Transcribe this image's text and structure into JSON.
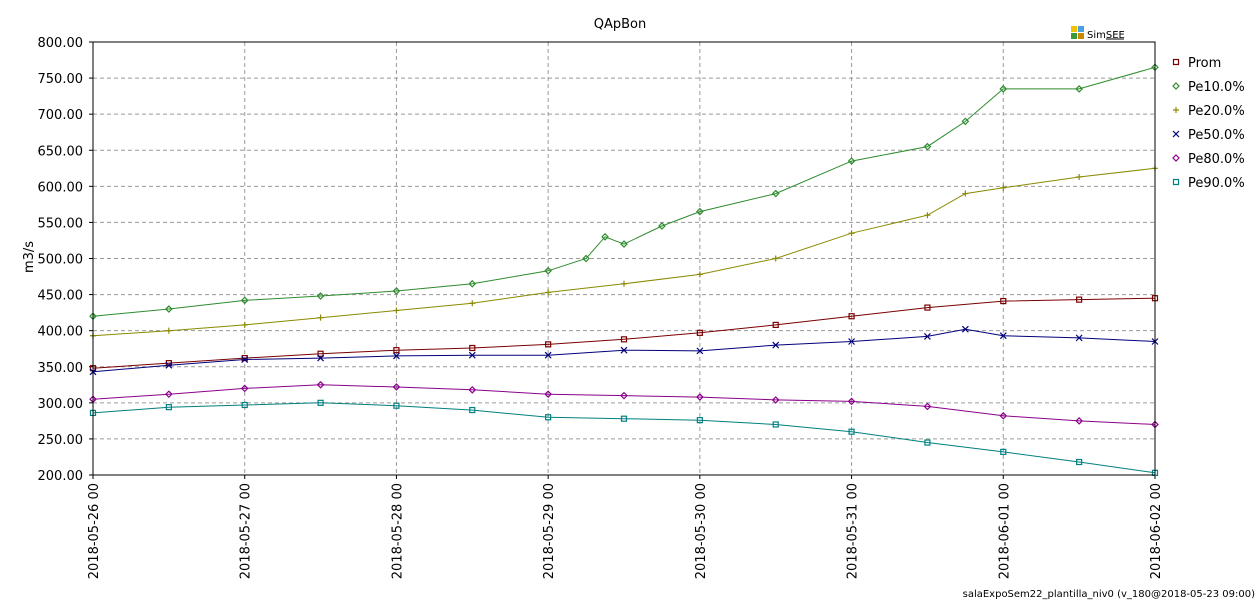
{
  "chart_data": {
    "type": "line",
    "title": "QApBon",
    "ylabel": "m3/s",
    "xlabel": "",
    "ylim": [
      200,
      800
    ],
    "yticks": [
      "200.00",
      "250.00",
      "300.00",
      "350.00",
      "400.00",
      "450.00",
      "500.00",
      "550.00",
      "600.00",
      "650.00",
      "700.00",
      "750.00",
      "800.00"
    ],
    "x_start": "2018-05-26 00",
    "x_end": "2018-06-02 00",
    "xticks": [
      "2018-05-26 00",
      "2018-05-27 00",
      "2018-05-28 00",
      "2018-05-29 00",
      "2018-05-30 00",
      "2018-05-31 00",
      "2018-06-01 00",
      "2018-06-02 00"
    ],
    "grid": true,
    "legend_position": "right",
    "logo": "SimSEE",
    "footer": "salaExpoSem22_plantilla_niv0 (v_180@2018-05-23 09:00)",
    "series": [
      {
        "name": "Prom",
        "color": "#7a0000",
        "marker": "square",
        "x": [
          "2018-05-26 00",
          "2018-05-26 12",
          "2018-05-27 00",
          "2018-05-27 12",
          "2018-05-28 00",
          "2018-05-28 12",
          "2018-05-29 00",
          "2018-05-29 12",
          "2018-05-30 00",
          "2018-05-30 12",
          "2018-05-31 00",
          "2018-05-31 12",
          "2018-06-01 00",
          "2018-06-01 12",
          "2018-06-02 00"
        ],
        "values": [
          348,
          355,
          362,
          368,
          373,
          376,
          381,
          388,
          397,
          408,
          420,
          432,
          441,
          443,
          445
        ]
      },
      {
        "name": "Pe10.0%",
        "color": "#2e8b2e",
        "marker": "diamond",
        "x": [
          "2018-05-26 00",
          "2018-05-26 12",
          "2018-05-27 00",
          "2018-05-27 12",
          "2018-05-28 00",
          "2018-05-28 12",
          "2018-05-29 00",
          "2018-05-29 06",
          "2018-05-29 09",
          "2018-05-29 12",
          "2018-05-29 18",
          "2018-05-30 00",
          "2018-05-30 12",
          "2018-05-31 00",
          "2018-05-31 12",
          "2018-05-31 18",
          "2018-06-01 00",
          "2018-06-01 12",
          "2018-06-02 00"
        ],
        "values": [
          420,
          430,
          442,
          448,
          455,
          465,
          483,
          500,
          530,
          520,
          545,
          565,
          590,
          635,
          655,
          690,
          735,
          735,
          765
        ]
      },
      {
        "name": "Pe20.0%",
        "color": "#8a8a00",
        "marker": "plus",
        "x": [
          "2018-05-26 00",
          "2018-05-26 12",
          "2018-05-27 00",
          "2018-05-27 12",
          "2018-05-28 00",
          "2018-05-28 12",
          "2018-05-29 00",
          "2018-05-29 12",
          "2018-05-30 00",
          "2018-05-30 12",
          "2018-05-31 00",
          "2018-05-31 12",
          "2018-05-31 18",
          "2018-06-01 00",
          "2018-06-01 12",
          "2018-06-02 00"
        ],
        "values": [
          393,
          400,
          408,
          418,
          428,
          438,
          453,
          465,
          478,
          500,
          535,
          560,
          590,
          598,
          613,
          625
        ]
      },
      {
        "name": "Pe50.0%",
        "color": "#00007a",
        "marker": "cross",
        "x": [
          "2018-05-26 00",
          "2018-05-26 12",
          "2018-05-27 00",
          "2018-05-27 12",
          "2018-05-28 00",
          "2018-05-28 12",
          "2018-05-29 00",
          "2018-05-29 12",
          "2018-05-30 00",
          "2018-05-30 12",
          "2018-05-31 00",
          "2018-05-31 12",
          "2018-05-31 18",
          "2018-06-01 00",
          "2018-06-01 12",
          "2018-06-02 00"
        ],
        "values": [
          343,
          352,
          360,
          362,
          365,
          366,
          366,
          373,
          372,
          380,
          385,
          392,
          402,
          393,
          390,
          385
        ]
      },
      {
        "name": "Pe80.0%",
        "color": "#8b008b",
        "marker": "diamond",
        "x": [
          "2018-05-26 00",
          "2018-05-26 12",
          "2018-05-27 00",
          "2018-05-27 12",
          "2018-05-28 00",
          "2018-05-28 12",
          "2018-05-29 00",
          "2018-05-29 12",
          "2018-05-30 00",
          "2018-05-30 12",
          "2018-05-31 00",
          "2018-05-31 12",
          "2018-06-01 00",
          "2018-06-01 12",
          "2018-06-02 00"
        ],
        "values": [
          305,
          312,
          320,
          325,
          322,
          318,
          312,
          310,
          308,
          304,
          302,
          295,
          282,
          275,
          270
        ]
      },
      {
        "name": "Pe90.0%",
        "color": "#008080",
        "marker": "square",
        "x": [
          "2018-05-26 00",
          "2018-05-26 12",
          "2018-05-27 00",
          "2018-05-27 12",
          "2018-05-28 00",
          "2018-05-28 12",
          "2018-05-29 00",
          "2018-05-29 12",
          "2018-05-30 00",
          "2018-05-30 12",
          "2018-05-31 00",
          "2018-05-31 12",
          "2018-06-01 00",
          "2018-06-01 12",
          "2018-06-02 00"
        ],
        "values": [
          286,
          294,
          297,
          300,
          296,
          290,
          280,
          278,
          276,
          270,
          260,
          245,
          232,
          218,
          203
        ]
      }
    ]
  }
}
